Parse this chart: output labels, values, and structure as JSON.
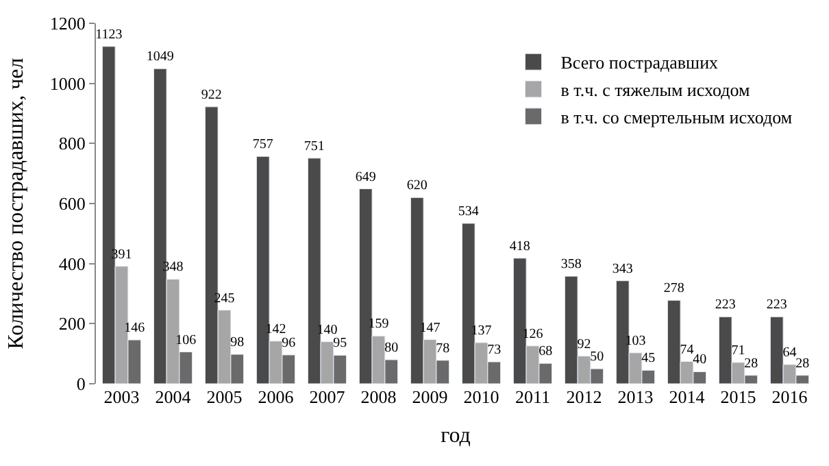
{
  "chart_data": {
    "type": "bar",
    "xlabel": "год",
    "ylabel": "Количество пострадавших, чел",
    "categories": [
      "2003",
      "2004",
      "2005",
      "2006",
      "2007",
      "2008",
      "2009",
      "2010",
      "2011",
      "2012",
      "2013",
      "2014",
      "2015",
      "2016"
    ],
    "series": [
      {
        "name": "Всего пострадавших",
        "color": "#4a4a4a",
        "values": [
          1123,
          1049,
          922,
          757,
          751,
          649,
          620,
          534,
          418,
          358,
          343,
          278,
          223,
          223
        ]
      },
      {
        "name": "в т.ч. с тяжелым исходом",
        "color": "#a6a6a6",
        "values": [
          391,
          348,
          245,
          142,
          140,
          159,
          147,
          137,
          126,
          92,
          103,
          74,
          71,
          64
        ]
      },
      {
        "name": "в т.ч. со смертельным исходом",
        "color": "#6a6a6a",
        "values": [
          146,
          106,
          98,
          96,
          95,
          80,
          78,
          73,
          68,
          50,
          45,
          40,
          28,
          28
        ]
      }
    ],
    "ylim": [
      0,
      1200
    ],
    "yticks": [
      0,
      200,
      400,
      600,
      800,
      1000,
      1200
    ],
    "grid": false,
    "legend": "top right",
    "data_labels": true
  }
}
